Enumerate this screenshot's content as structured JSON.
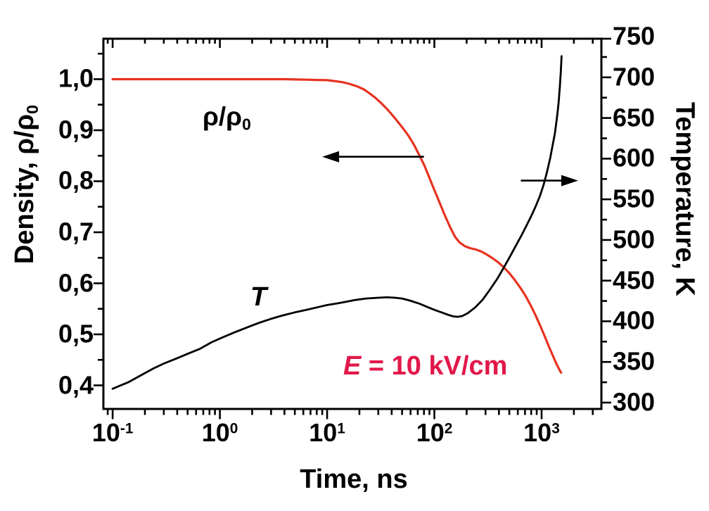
{
  "chart_data": {
    "type": "line",
    "title": "",
    "xlabel": "Time, ns",
    "x_scale": "log",
    "xlim": [
      0.082,
      3610
    ],
    "grid": false,
    "legend": "none",
    "x_major_tick_values": [
      0.1,
      1,
      10,
      100,
      1000
    ],
    "x_tick_mantissa": "10",
    "x_tick_exponents": [
      "-1",
      "0",
      "1",
      "2",
      "3"
    ],
    "x_minor_tick_mantissas": [
      2,
      3,
      4,
      5,
      6,
      7,
      8,
      9
    ],
    "left_axis": {
      "label_prefix": "Density, ",
      "label_rho": "ρ/ρ",
      "label_sub": "0",
      "tick_labels": [
        "1,0",
        "0,9",
        "0,8",
        "0,7",
        "0,6",
        "0,5",
        "0,4"
      ],
      "tick_values": [
        1.0,
        0.9,
        0.8,
        0.7,
        0.6,
        0.5,
        0.4
      ],
      "minor_tick_values": [
        1.05,
        0.95,
        0.85,
        0.75,
        0.65,
        0.55,
        0.45
      ],
      "top_value": 1.0793,
      "bottom_value": 0.3538
    },
    "right_axis": {
      "label": "Temperature, K",
      "tick_values": [
        750,
        700,
        650,
        600,
        550,
        500,
        450,
        400,
        350,
        300
      ],
      "minor_tick_values": [
        725,
        675,
        625,
        575,
        525,
        475,
        425,
        375,
        325
      ],
      "top_value": 747.5,
      "bottom_value": 292.2
    },
    "series": [
      {
        "name": "density",
        "label": "ρ/ρ0",
        "axis": "left",
        "color": "#e73220",
        "width": 3.2,
        "points": [
          [
            0.1,
            1.0
          ],
          [
            0.15,
            1.0
          ],
          [
            0.25,
            1.0
          ],
          [
            0.4,
            1.0
          ],
          [
            0.7,
            1.0
          ],
          [
            1.2,
            1.0
          ],
          [
            2,
            1.0
          ],
          [
            3,
            1.0
          ],
          [
            4,
            1.0
          ],
          [
            5,
            0.9995
          ],
          [
            6.5,
            0.999
          ],
          [
            8,
            0.9985
          ],
          [
            10,
            0.998
          ],
          [
            12,
            0.996
          ],
          [
            14,
            0.994
          ],
          [
            16,
            0.991
          ],
          [
            19,
            0.986
          ],
          [
            22,
            0.98
          ],
          [
            25,
            0.972
          ],
          [
            28,
            0.964
          ],
          [
            32,
            0.953
          ],
          [
            36,
            0.942
          ],
          [
            40,
            0.931
          ],
          [
            45,
            0.918
          ],
          [
            50,
            0.906
          ],
          [
            57,
            0.89
          ],
          [
            64,
            0.873
          ],
          [
            72,
            0.852
          ],
          [
            81,
            0.83
          ],
          [
            91,
            0.804
          ],
          [
            100,
            0.783
          ],
          [
            112,
            0.758
          ],
          [
            126,
            0.732
          ],
          [
            141,
            0.709
          ],
          [
            156,
            0.691
          ],
          [
            172,
            0.68
          ],
          [
            192,
            0.673
          ],
          [
            215,
            0.669
          ],
          [
            245,
            0.666
          ],
          [
            275,
            0.662
          ],
          [
            310,
            0.656
          ],
          [
            350,
            0.649
          ],
          [
            395,
            0.641
          ],
          [
            445,
            0.631
          ],
          [
            500,
            0.62
          ],
          [
            560,
            0.607
          ],
          [
            630,
            0.592
          ],
          [
            705,
            0.576
          ],
          [
            790,
            0.557
          ],
          [
            880,
            0.537
          ],
          [
            975,
            0.516
          ],
          [
            1075,
            0.495
          ],
          [
            1175,
            0.475
          ],
          [
            1275,
            0.458
          ],
          [
            1370,
            0.443
          ],
          [
            1455,
            0.432
          ],
          [
            1520,
            0.425
          ]
        ]
      },
      {
        "name": "temperature",
        "label": "T",
        "axis": "right",
        "color": "#000000",
        "width": 2.8,
        "points": [
          [
            0.1,
            317
          ],
          [
            0.14,
            325
          ],
          [
            0.18,
            333
          ],
          [
            0.24,
            342
          ],
          [
            0.3,
            348
          ],
          [
            0.39,
            354
          ],
          [
            0.5,
            360
          ],
          [
            0.65,
            366
          ],
          [
            0.83,
            374
          ],
          [
            1.05,
            380
          ],
          [
            1.35,
            386
          ],
          [
            1.76,
            392
          ],
          [
            2.3,
            398
          ],
          [
            3,
            403
          ],
          [
            3.8,
            407
          ],
          [
            5,
            411
          ],
          [
            6.4,
            414
          ],
          [
            8,
            417
          ],
          [
            10,
            420
          ],
          [
            12.5,
            422
          ],
          [
            15,
            424
          ],
          [
            18,
            426
          ],
          [
            23,
            428
          ],
          [
            30,
            429
          ],
          [
            36,
            429.5
          ],
          [
            43,
            429
          ],
          [
            50,
            428
          ],
          [
            59,
            425.5
          ],
          [
            73,
            421.5
          ],
          [
            88,
            417
          ],
          [
            103,
            413.5
          ],
          [
            119,
            410.5
          ],
          [
            134,
            408
          ],
          [
            150,
            406
          ],
          [
            165,
            405.5
          ],
          [
            182,
            406.5
          ],
          [
            205,
            410
          ],
          [
            240,
            417
          ],
          [
            280,
            426
          ],
          [
            330,
            439
          ],
          [
            385,
            452
          ],
          [
            435,
            464
          ],
          [
            495,
            477
          ],
          [
            565,
            491
          ],
          [
            645,
            505
          ],
          [
            725,
            518
          ],
          [
            805,
            530
          ],
          [
            885,
            542
          ],
          [
            965,
            554
          ],
          [
            1045,
            568
          ],
          [
            1125,
            584
          ],
          [
            1205,
            601
          ],
          [
            1270,
            617
          ],
          [
            1330,
            631
          ],
          [
            1390,
            650
          ],
          [
            1440,
            668
          ],
          [
            1480,
            689
          ],
          [
            1510,
            707
          ],
          [
            1535,
            726
          ]
        ]
      }
    ],
    "annotations": {
      "density_curve": {
        "rho": "ρ/ρ",
        "sub": "0"
      },
      "temperature_curve": {
        "text": "T"
      },
      "field": {
        "prefix": "E",
        "rest": " = 10 kV/cm",
        "color": "#e2184a"
      },
      "arrows": [
        {
          "name": "density-axis-arrow",
          "axis": "left",
          "value": 0.848,
          "t_from": 80,
          "t_to": 9,
          "direction": "left"
        },
        {
          "name": "temperature-axis-arrow",
          "axis": "right",
          "value": 573,
          "t_from": 640,
          "t_to": 2190,
          "direction": "right"
        }
      ]
    },
    "frame_color": "#000000",
    "background": "#ffffff"
  }
}
